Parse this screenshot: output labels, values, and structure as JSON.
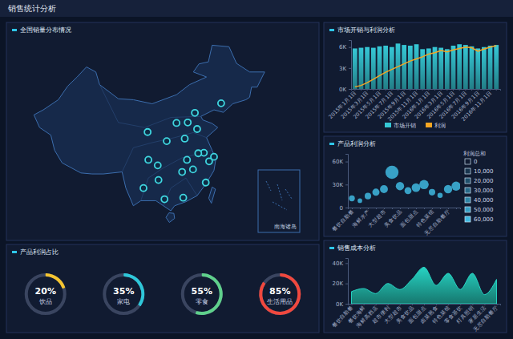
{
  "title": "销售统计分析",
  "map": {
    "title": "全国销量分布情况",
    "inset_label": "南海诸岛"
  },
  "chart_data": [
    {
      "type": "bar",
      "title": "市场开销与利润分析",
      "categories": [
        "2015年1月1日",
        null,
        "2015年3月1日",
        null,
        "2015年5月1日",
        null,
        "2015年7月1日",
        null,
        "2015年9月1日",
        null,
        "2015年11月1日",
        null,
        "2016年1月1日",
        null,
        "2016年3月1日",
        null,
        "2016年5月1日",
        null,
        "2016年7月1日",
        null,
        "2016年9月1日",
        null,
        "2016年11月1日",
        null
      ],
      "series": [
        {
          "name": "市场开销",
          "type": "bar",
          "color": "#36c8d6",
          "values": [
            5800,
            5900,
            6000,
            5900,
            6100,
            6200,
            6000,
            6500,
            6300,
            6200,
            6400,
            5700,
            5800,
            6000,
            5900,
            5700,
            6200,
            6400,
            6300,
            6100,
            5800,
            6000,
            6200,
            6300
          ]
        },
        {
          "name": "利润",
          "type": "line",
          "color": "#f5a623",
          "values": [
            300,
            500,
            900,
            1400,
            1900,
            2400,
            2800,
            3200,
            3600,
            4000,
            4300,
            4600,
            5000,
            5200,
            5500,
            5300,
            5600,
            5800,
            6000,
            5900,
            5400,
            5700,
            6000,
            6200
          ]
        }
      ],
      "ylim": [
        0,
        7000
      ],
      "yticks": [
        {
          "value": 0,
          "label": "0K"
        },
        {
          "value": 3000,
          "label": "3K"
        },
        {
          "value": 6000,
          "label": "6K"
        }
      ],
      "grid": false,
      "legend": "bottom"
    },
    {
      "type": "scatter",
      "title": "产品利润分析",
      "categories": [
        "餐饮自助餐",
        null,
        "海鲜水产",
        null,
        "大型超市",
        null,
        "美食饮品",
        null,
        "面包甜点",
        null,
        "特色菜馆",
        null,
        "无尽自助餐厅",
        null
      ],
      "values": [
        12000,
        9000,
        15000,
        20000,
        24000,
        46000,
        28000,
        22000,
        26000,
        30000,
        20000,
        16000,
        24000,
        28000
      ],
      "sizes": [
        10000,
        6000,
        12000,
        15000,
        18000,
        50000,
        20000,
        14000,
        22000,
        25000,
        12000,
        8000,
        20000,
        24000
      ],
      "color": "#3fb8e0",
      "ylim": [
        0,
        70000
      ],
      "yticks": [
        0,
        {
          "value": 30000,
          "label": "30K"
        },
        {
          "value": 60000,
          "label": "60K"
        }
      ],
      "size_title": "利润总和",
      "size_ticks": [
        0,
        {
          "value": 10000,
          "label": "10,000"
        },
        {
          "value": 20000,
          "label": "20,000"
        },
        {
          "value": 30000,
          "label": "30,000"
        },
        {
          "value": 40000,
          "label": "40,000"
        },
        {
          "value": 50000,
          "label": "50,000"
        },
        {
          "value": 60000,
          "label": "60,000"
        }
      ],
      "grid": false
    },
    {
      "type": "area",
      "title": "销售成本分析",
      "categories": [
        "餐饮自助餐",
        "餐饮海鲜",
        "海鲜高档店",
        "超市便利",
        "大型超市",
        "美食饮品",
        "面包甜点",
        "卤菜熟食",
        "特色菜馆",
        "零食茶饮",
        "灯具照明",
        "家居生活",
        "无尽自助餐厅"
      ],
      "values": [
        12000,
        15000,
        10000,
        20000,
        14000,
        24000,
        36000,
        18000,
        30000,
        14000,
        30000,
        9000,
        24000
      ],
      "color": "#27d3c3",
      "ylim": [
        0,
        45000
      ],
      "yticks": [
        {
          "value": 0,
          "label": "0K"
        },
        {
          "value": 20000,
          "label": "20K"
        },
        {
          "value": 40000,
          "label": "40K"
        }
      ],
      "grid": false
    },
    {
      "type": "donut",
      "title": "产品利润占比",
      "categories": [
        "饮品",
        "家电",
        "零食",
        "生活用品"
      ],
      "values": [
        20,
        35,
        55,
        85
      ],
      "value_labels": [
        "20%",
        "35%",
        "55%",
        "85%"
      ],
      "range": [
        0,
        100
      ],
      "colors": [
        "#f4c430",
        "#2ec7d9",
        "#5fd08b",
        "#f0483e"
      ],
      "data_labels": true
    }
  ]
}
